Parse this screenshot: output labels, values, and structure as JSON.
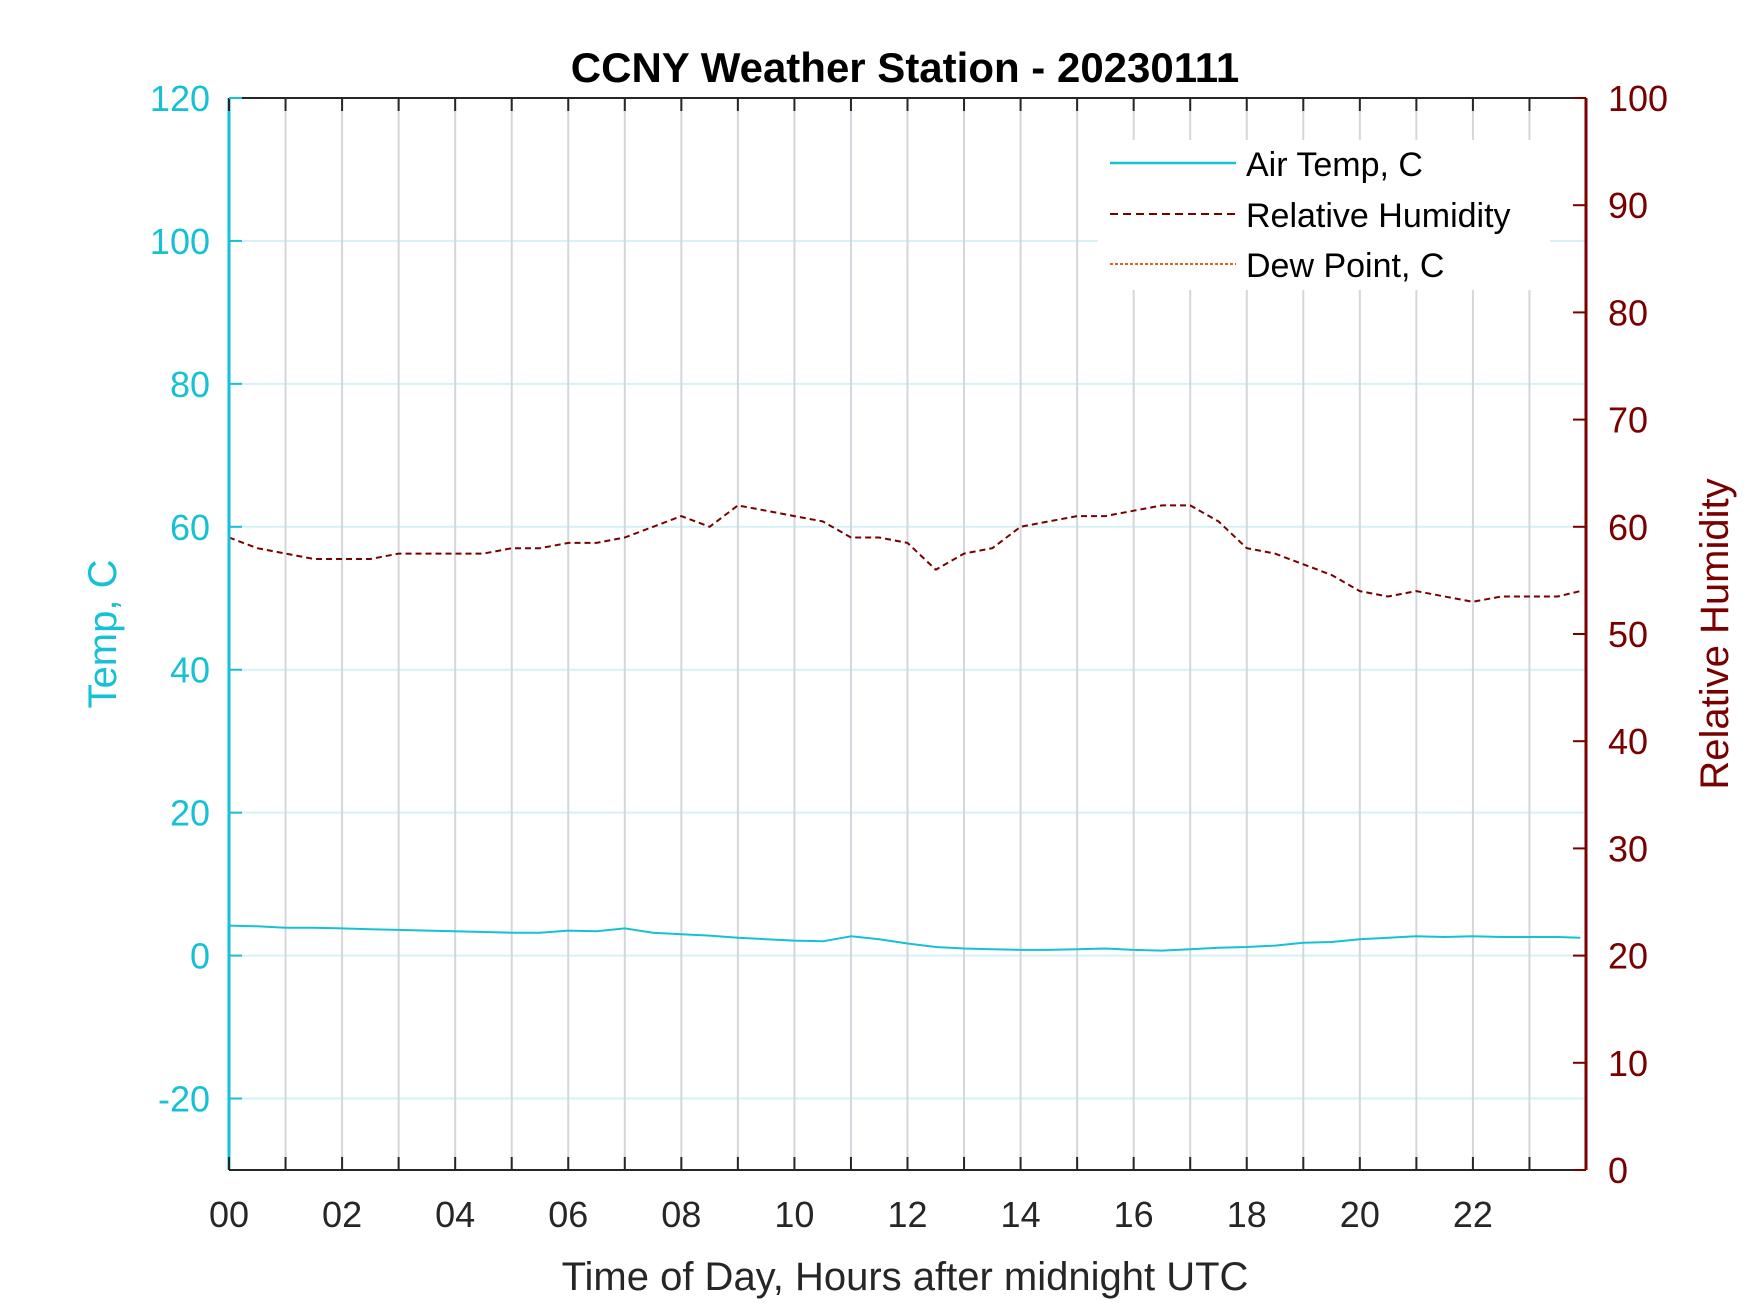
{
  "chart_data": {
    "type": "line",
    "title": "CCNY Weather Station - 20230111",
    "xlabel": "Time of Day, Hours after midnight UTC",
    "ylabel_left": "Temp, C",
    "ylabel_right": "Relative Humidity",
    "xlim": [
      0,
      24
    ],
    "ylim_left": [
      -30,
      120
    ],
    "ylim_right": [
      0,
      100
    ],
    "x_ticks": [
      0,
      2,
      4,
      6,
      8,
      10,
      12,
      14,
      16,
      18,
      20,
      22
    ],
    "x_tick_labels": [
      "00",
      "02",
      "04",
      "06",
      "08",
      "10",
      "12",
      "14",
      "16",
      "18",
      "20",
      "22"
    ],
    "y_ticks_left": [
      -20,
      0,
      20,
      40,
      60,
      80,
      100,
      120
    ],
    "y_tick_labels_left": [
      "-20",
      "0",
      "20",
      "40",
      "60",
      "80",
      "100",
      "120"
    ],
    "y_ticks_right": [
      0,
      10,
      20,
      30,
      40,
      50,
      60,
      70,
      80,
      90,
      100
    ],
    "y_tick_labels_right": [
      "0",
      "10",
      "20",
      "30",
      "40",
      "50",
      "60",
      "70",
      "80",
      "90",
      "100"
    ],
    "grid": true,
    "legend_position": "top-right",
    "colors": {
      "left_axis": "#16c1d6",
      "right_axis": "#7a0000",
      "air_temp": "#16c1d6",
      "humidity": "#7a0000",
      "dew_point": "#e0601a",
      "grid_vertical": "#d3d7dc",
      "grid_horizontal": "#d6f1f6"
    },
    "series": [
      {
        "name": "Air Temp, C",
        "axis": "left",
        "style": "solid",
        "x": [
          0,
          0.5,
          1,
          1.5,
          2,
          2.5,
          3,
          3.5,
          4,
          4.5,
          5,
          5.5,
          6,
          6.5,
          7,
          7.5,
          8,
          8.5,
          9,
          9.5,
          10,
          10.5,
          11,
          11.5,
          12,
          12.5,
          13,
          13.5,
          14,
          14.5,
          15,
          15.5,
          16,
          16.5,
          17,
          17.5,
          18,
          18.5,
          19,
          19.5,
          20,
          20.5,
          21,
          21.5,
          22,
          22.5,
          23,
          23.5,
          23.9
        ],
        "y": [
          4.2,
          4.1,
          3.9,
          3.9,
          3.8,
          3.7,
          3.6,
          3.5,
          3.4,
          3.3,
          3.2,
          3.2,
          3.5,
          3.4,
          3.8,
          3.2,
          3.0,
          2.8,
          2.5,
          2.3,
          2.1,
          2.0,
          2.7,
          2.3,
          1.7,
          1.2,
          1.0,
          0.9,
          0.8,
          0.8,
          0.9,
          1.0,
          0.8,
          0.7,
          0.9,
          1.1,
          1.2,
          1.4,
          1.8,
          1.9,
          2.3,
          2.5,
          2.7,
          2.6,
          2.7,
          2.6,
          2.6,
          2.6,
          2.5
        ]
      },
      {
        "name": "Relative Humidity",
        "axis": "right",
        "style": "dashed",
        "x": [
          0,
          0.5,
          1,
          1.5,
          2,
          2.5,
          3,
          3.5,
          4,
          4.5,
          5,
          5.5,
          6,
          6.5,
          7,
          7.5,
          8,
          8.5,
          9,
          9.5,
          10,
          10.5,
          11,
          11.5,
          12,
          12.5,
          13,
          13.5,
          14,
          14.5,
          15,
          15.5,
          16,
          16.5,
          17,
          17.5,
          18,
          18.5,
          19,
          19.5,
          20,
          20.5,
          21,
          21.5,
          22,
          22.5,
          23,
          23.5,
          23.9
        ],
        "y": [
          59,
          58,
          57.5,
          57,
          57,
          57,
          57.5,
          57.5,
          57.5,
          57.5,
          58,
          58,
          58.5,
          58.5,
          59,
          60,
          61,
          60,
          62,
          61.5,
          61,
          60.5,
          59,
          59,
          58.5,
          56,
          57.5,
          58,
          60,
          60.5,
          61,
          61,
          61.5,
          62,
          62,
          60.5,
          58,
          57.5,
          56.5,
          55.5,
          54,
          53.5,
          54,
          53.5,
          53,
          53.5,
          53.5,
          53.5,
          54
        ]
      },
      {
        "name": "Dew Point, C",
        "axis": "left",
        "style": "dotted",
        "x": [],
        "y": []
      }
    ]
  }
}
